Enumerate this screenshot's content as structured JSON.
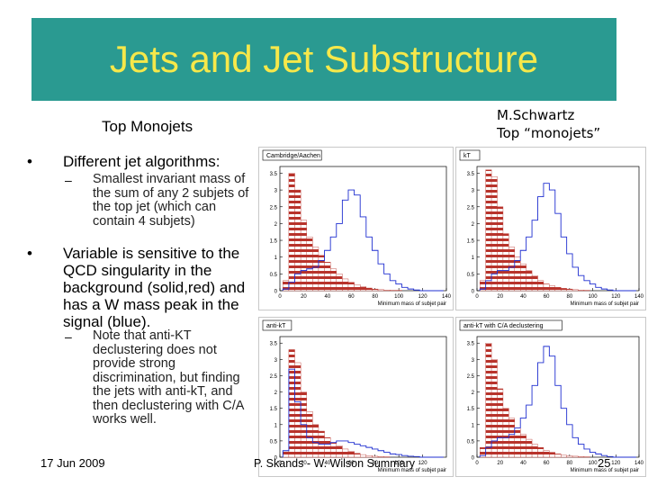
{
  "slide": {
    "title": "Jets and Jet Substructure",
    "subtitle": "Top Monojets",
    "credit_line1": "M.Schwartz",
    "credit_line2": "Top “monojets”",
    "bullets": [
      {
        "text": "Different jet algorithms:",
        "sub": "Smallest invariant mass of the sum of any 2 subjets of the top jet (which can contain 4 subjets)"
      },
      {
        "text": "Variable is sensitive to the QCD singularity in the background (solid,red) and has a W mass peak in the signal (blue).",
        "sub": "Note that anti-KT declustering does not provide strong discrimination, but finding the jets with anti-kT, and then declustering with C/A works well."
      }
    ],
    "footer_date": "17 Jun 2009",
    "footer_center": "P. Skands - W. Wilson Summary",
    "footer_page": "25",
    "colors": {
      "title_bg": "#2a9a91",
      "title_text": "#f6e84a",
      "background": "#b8332b",
      "signal": "#1f2fd0"
    }
  },
  "chart_data": [
    {
      "type": "bar",
      "label": "Cambridge/Aachen",
      "xlabel": "Minimum mass of subjet pair",
      "x_ticks": [
        "0",
        "20",
        "40",
        "60",
        "80",
        "100",
        "120",
        "140"
      ],
      "y_ticks": [
        "0",
        "0.5",
        "1",
        "1.5",
        "2",
        "2.5",
        "3",
        "3.5"
      ],
      "xlim": [
        0,
        140
      ],
      "ylim": [
        0,
        3.7
      ],
      "series": [
        {
          "name": "background",
          "x": [
            5,
            10,
            15,
            20,
            25,
            30,
            35,
            40,
            45,
            50,
            55,
            60,
            65,
            70,
            75,
            80,
            85,
            90,
            95,
            100,
            105,
            110,
            115,
            120,
            125,
            130,
            135
          ],
          "values": [
            0.3,
            3.5,
            3.0,
            2.1,
            1.6,
            1.3,
            1.05,
            0.85,
            0.65,
            0.5,
            0.35,
            0.25,
            0.18,
            0.12,
            0.08,
            0.05,
            0.03,
            0.02,
            0.01,
            0.01,
            0,
            0,
            0,
            0,
            0,
            0,
            0
          ]
        },
        {
          "name": "signal",
          "x": [
            5,
            10,
            15,
            20,
            25,
            30,
            35,
            40,
            45,
            50,
            55,
            60,
            65,
            70,
            75,
            80,
            85,
            90,
            95,
            100,
            105,
            110,
            115,
            120,
            125,
            130,
            135
          ],
          "values": [
            0.05,
            0.25,
            0.5,
            0.6,
            0.65,
            0.7,
            0.9,
            1.2,
            1.6,
            2.0,
            2.7,
            3.0,
            2.85,
            2.2,
            1.6,
            1.2,
            0.8,
            0.5,
            0.3,
            0.2,
            0.1,
            0.05,
            0.02,
            0,
            0,
            0,
            0
          ]
        }
      ]
    },
    {
      "type": "bar",
      "label": "kT",
      "xlabel": "Minimum mass of subjet pair",
      "x_ticks": [
        "0",
        "20",
        "40",
        "60",
        "80",
        "100",
        "120",
        "140"
      ],
      "y_ticks": [
        "0",
        "0.5",
        "1",
        "1.5",
        "2",
        "2.5",
        "3",
        "3.5"
      ],
      "xlim": [
        0,
        140
      ],
      "ylim": [
        0,
        3.7
      ],
      "series": [
        {
          "name": "background",
          "x": [
            5,
            10,
            15,
            20,
            25,
            30,
            35,
            40,
            45,
            50,
            55,
            60,
            65,
            70,
            75,
            80,
            85,
            90,
            95,
            100,
            105,
            110,
            115,
            120,
            125,
            130,
            135
          ],
          "values": [
            0.3,
            3.6,
            3.4,
            2.5,
            1.7,
            1.3,
            1.0,
            0.8,
            0.6,
            0.45,
            0.3,
            0.2,
            0.15,
            0.1,
            0.07,
            0.05,
            0.03,
            0.02,
            0.01,
            0,
            0,
            0,
            0,
            0,
            0,
            0,
            0
          ]
        },
        {
          "name": "signal",
          "x": [
            5,
            10,
            15,
            20,
            25,
            30,
            35,
            40,
            45,
            50,
            55,
            60,
            65,
            70,
            75,
            80,
            85,
            90,
            95,
            100,
            105,
            110,
            115,
            120,
            125,
            130,
            135
          ],
          "values": [
            0.05,
            0.3,
            0.5,
            0.6,
            0.6,
            0.7,
            0.9,
            1.2,
            1.6,
            2.1,
            2.8,
            3.2,
            3.0,
            2.3,
            1.6,
            1.1,
            0.7,
            0.45,
            0.3,
            0.2,
            0.1,
            0.05,
            0.02,
            0,
            0,
            0,
            0
          ]
        }
      ]
    },
    {
      "type": "bar",
      "label": "anti-kT",
      "xlabel": "Minimum mass of subjet pair",
      "x_ticks": [
        "0",
        "20",
        "40",
        "60",
        "80",
        "100",
        "120"
      ],
      "y_ticks": [
        "0",
        "0.5",
        "1",
        "1.5",
        "2",
        "2.5",
        "3",
        "3.5"
      ],
      "xlim": [
        0,
        140
      ],
      "ylim": [
        0,
        3.7
      ],
      "series": [
        {
          "name": "background",
          "x": [
            5,
            10,
            15,
            20,
            25,
            30,
            35,
            40,
            45,
            50,
            55,
            60,
            65,
            70,
            75,
            80,
            85,
            90,
            95,
            100,
            105,
            110,
            115,
            120,
            125,
            130,
            135
          ],
          "values": [
            0.2,
            3.3,
            2.9,
            2.0,
            1.4,
            1.0,
            0.8,
            0.6,
            0.45,
            0.35,
            0.25,
            0.18,
            0.12,
            0.08,
            0.05,
            0.03,
            0.02,
            0.01,
            0,
            0,
            0,
            0,
            0,
            0,
            0,
            0,
            0
          ]
        },
        {
          "name": "signal",
          "x": [
            5,
            10,
            15,
            20,
            25,
            30,
            35,
            40,
            45,
            50,
            55,
            60,
            65,
            70,
            75,
            80,
            85,
            90,
            95,
            100,
            105,
            110,
            115,
            120,
            125,
            130,
            135
          ],
          "values": [
            0.2,
            2.7,
            1.7,
            1.0,
            0.6,
            0.45,
            0.4,
            0.4,
            0.45,
            0.5,
            0.5,
            0.45,
            0.4,
            0.35,
            0.3,
            0.25,
            0.2,
            0.15,
            0.1,
            0.08,
            0.05,
            0.03,
            0.02,
            0,
            0,
            0,
            0
          ]
        }
      ]
    },
    {
      "type": "bar",
      "label": "anti-kT with C/A declustering",
      "xlabel": "Minimum mass of subjet pair",
      "x_ticks": [
        "0",
        "20",
        "40",
        "60",
        "80",
        "100",
        "120",
        "140"
      ],
      "y_ticks": [
        "0",
        "0.5",
        "1",
        "1.5",
        "2",
        "2.5",
        "3",
        "3.5"
      ],
      "xlim": [
        0,
        140
      ],
      "ylim": [
        0,
        3.7
      ],
      "series": [
        {
          "name": "background",
          "x": [
            5,
            10,
            15,
            20,
            25,
            30,
            35,
            40,
            45,
            50,
            55,
            60,
            65,
            70,
            75,
            80,
            85,
            90,
            95,
            100,
            105,
            110,
            115,
            120,
            125,
            130,
            135
          ],
          "values": [
            0.3,
            3.5,
            3.0,
            2.1,
            1.5,
            1.2,
            0.9,
            0.7,
            0.55,
            0.4,
            0.3,
            0.2,
            0.15,
            0.1,
            0.06,
            0.04,
            0.03,
            0.02,
            0.01,
            0,
            0,
            0,
            0,
            0,
            0,
            0,
            0
          ]
        },
        {
          "name": "signal",
          "x": [
            5,
            10,
            15,
            20,
            25,
            30,
            35,
            40,
            45,
            50,
            55,
            60,
            65,
            70,
            75,
            80,
            85,
            90,
            95,
            100,
            105,
            110,
            115,
            120,
            125,
            130,
            135
          ],
          "values": [
            0.05,
            0.3,
            0.5,
            0.6,
            0.6,
            0.7,
            0.9,
            1.2,
            1.6,
            2.2,
            2.9,
            3.4,
            3.1,
            2.2,
            1.5,
            1.0,
            0.6,
            0.4,
            0.25,
            0.15,
            0.1,
            0.05,
            0.02,
            0,
            0,
            0,
            0
          ]
        }
      ]
    }
  ]
}
